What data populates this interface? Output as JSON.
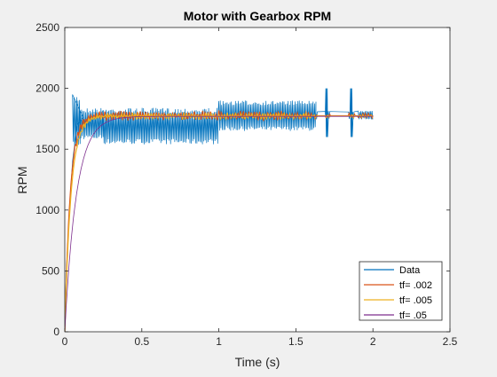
{
  "chart_data": {
    "type": "line",
    "title": "Motor with Gearbox RPM",
    "xlabel": "Time (s)",
    "ylabel": "RPM",
    "xlim": [
      0,
      2.5
    ],
    "ylim": [
      0,
      2500
    ],
    "xticks": [
      0,
      0.5,
      1,
      1.5,
      2,
      2.5
    ],
    "xtick_labels": [
      "0",
      "0.5",
      "1",
      "1.5",
      "2",
      "2.5"
    ],
    "yticks": [
      0,
      500,
      1000,
      1500,
      2000,
      2500
    ],
    "ytick_labels": [
      "0",
      "500",
      "1000",
      "1500",
      "2000",
      "2500"
    ],
    "grid": false,
    "legend_position": "bottom-right",
    "series": [
      {
        "name": "Data",
        "color": "#0072BD",
        "kind": "noisy-measurement",
        "points": [
          [
            0,
            0
          ],
          [
            0.01,
            500
          ],
          [
            0.03,
            1000
          ],
          [
            0.05,
            1400
          ],
          [
            0.08,
            1700
          ],
          [
            0.12,
            1760
          ],
          [
            0.2,
            1775
          ],
          [
            1.0,
            1778
          ],
          [
            1.63,
            1780
          ],
          [
            1.7,
            1778
          ],
          [
            2.0,
            1785
          ]
        ],
        "bands": [
          {
            "x": [
              0.05,
              0.1
            ],
            "low": 1500,
            "high": 1950
          },
          {
            "x": [
              0.1,
              0.25
            ],
            "low": 1580,
            "high": 1840
          },
          {
            "x": [
              0.25,
              1.0
            ],
            "low": 1540,
            "high": 1840
          },
          {
            "x": [
              1.0,
              1.63
            ],
            "low": 1650,
            "high": 1900
          },
          {
            "x": [
              1.63,
              2.0
            ],
            "low": 1745,
            "high": 1815
          }
        ],
        "spikes": [
          {
            "x": 1.7,
            "low": 1600,
            "high": 2000
          },
          {
            "x": 1.86,
            "low": 1600,
            "high": 2000
          }
        ],
        "gaps": [
          [
            1.64,
            1.69
          ],
          [
            1.72,
            1.84
          ],
          [
            1.88,
            1.9
          ]
        ]
      },
      {
        "name": "tf= .002",
        "color": "#D95319",
        "tau": 0.035,
        "final": 1775
      },
      {
        "name": "tf= .005",
        "color": "#EDB120",
        "tau": 0.04,
        "final": 1772
      },
      {
        "name": "tf= .05",
        "color": "#7E2F8E",
        "tau": 0.075,
        "final": 1770
      }
    ]
  }
}
